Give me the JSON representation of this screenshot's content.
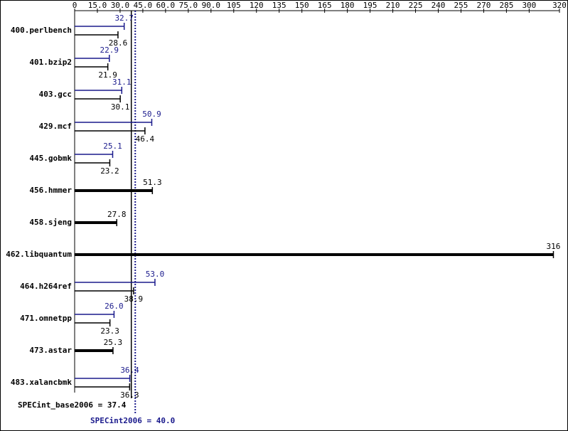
{
  "chart_data": {
    "type": "hbar",
    "categories": [
      "400.perlbench",
      "401.bzip2",
      "403.gcc",
      "429.mcf",
      "445.gobmk",
      "456.hmmer",
      "458.sjeng",
      "462.libquantum",
      "464.h264ref",
      "471.omnetpp",
      "473.astar",
      "483.xalancbmk"
    ],
    "series": [
      {
        "color": "#1a1a8c",
        "values": [
          32.7,
          22.9,
          31.1,
          50.9,
          25.1,
          null,
          null,
          null,
          53.0,
          26.0,
          null,
          36.4
        ],
        "value_labels": [
          "32.7",
          "22.9",
          "31.1",
          "50.9",
          "25.1",
          null,
          null,
          null,
          "53.0",
          "26.0",
          null,
          "36.4"
        ]
      },
      {
        "color": "#000000",
        "values": [
          28.6,
          21.9,
          30.1,
          46.4,
          23.2,
          51.3,
          27.8,
          316,
          38.9,
          23.3,
          25.3,
          36.3
        ],
        "value_labels": [
          "28.6",
          "21.9",
          "30.1",
          "46.4",
          "23.2",
          "51.3",
          "27.8",
          "316",
          "38.9",
          "23.3",
          "25.3",
          "36.3"
        ]
      }
    ],
    "xlim": [
      0,
      320
    ],
    "xticks": [
      0,
      {
        "value": 15,
        "label": "15.0"
      },
      {
        "value": 30,
        "label": "30.0"
      },
      {
        "value": 45,
        "label": "45.0"
      },
      {
        "value": 60,
        "label": "60.0"
      },
      {
        "value": 75,
        "label": "75.0"
      },
      {
        "value": 90,
        "label": "90.0"
      },
      105,
      120,
      135,
      150,
      165,
      180,
      195,
      210,
      225,
      240,
      255,
      270,
      285,
      300,
      320
    ],
    "reference_lines": [
      {
        "label": "SPECint_base2006 = 37.4",
        "value": 37.4,
        "color": "#000000",
        "style": "solid"
      },
      {
        "label": "SPECint2006 = 40.0",
        "value": 40.0,
        "color": "#1a1a8c",
        "style": "dotted"
      }
    ]
  }
}
